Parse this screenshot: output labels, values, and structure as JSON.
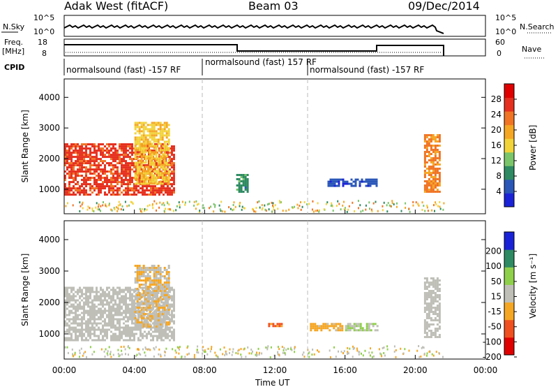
{
  "header": {
    "station": "Adak West (fitACF)",
    "beam": "Beam 03",
    "date": "09/Dec/2014"
  },
  "strips": {
    "nsky_label": "N.Sky",
    "nsky_ticks": [
      "10^5",
      "10^0"
    ],
    "nsearch_label": "N.Search",
    "freq_label": "Freq.",
    "freq_unit": "[MHz]",
    "freq_ticks": [
      "18",
      "8"
    ],
    "nave_label": "Nave",
    "nave_ticks": [
      "60",
      "0"
    ],
    "cpid_label": "CPID",
    "cpid_segments": [
      "normalsound (fast) -157 RF",
      "normalsound (fast) 157 RF",
      "normalsound (fast) -157 RF"
    ]
  },
  "xaxis": {
    "label": "Time UT",
    "ticks": [
      "00:00",
      "04:00",
      "08:00",
      "12:00",
      "16:00",
      "20:00",
      "00:00"
    ]
  },
  "colors": {
    "power": [
      "#1a22d8",
      "#2a56b8",
      "#2e8a62",
      "#7ac46a",
      "#f2d33a",
      "#f5a623",
      "#f07424",
      "#e62f1e",
      "#e00000"
    ],
    "velocity": [
      "#e00000",
      "#f05020",
      "#f5a623",
      "#bfbfb8",
      "#8fd04a",
      "#2e8a62",
      "#1a22d8"
    ]
  },
  "chart_data": [
    {
      "type": "heatmap",
      "panel": "power",
      "ylabel": "Slant Range [km]",
      "xlabel": "",
      "xlim": [
        0,
        24
      ],
      "ylim": [
        200,
        4600
      ],
      "yticks": [
        "1000",
        "2000",
        "3000",
        "4000"
      ],
      "colorbar": {
        "label": "Power [dB]",
        "ticks": [
          "4",
          "8",
          "12",
          "16",
          "20",
          "24",
          "28"
        ],
        "range": [
          0,
          32
        ]
      },
      "regions": [
        {
          "t0": 0.0,
          "t1": 6.2,
          "r0": 800,
          "r1": 2500,
          "value": 26
        },
        {
          "t0": 4.0,
          "t1": 6.0,
          "r0": 1200,
          "r1": 3200,
          "value": 17
        },
        {
          "t0": 9.8,
          "t1": 10.4,
          "r0": 900,
          "r1": 1500,
          "value": 9
        },
        {
          "t0": 15.0,
          "t1": 17.8,
          "r0": 1100,
          "r1": 1350,
          "value": 5
        },
        {
          "t0": 20.5,
          "t1": 21.4,
          "r0": 900,
          "r1": 2800,
          "value": 22
        }
      ]
    },
    {
      "type": "heatmap",
      "panel": "velocity",
      "ylabel": "Slant Range [km]",
      "xlabel": "Time UT",
      "xlim": [
        0,
        24
      ],
      "ylim": [
        200,
        4600
      ],
      "yticks": [
        "1000",
        "2000",
        "3000",
        "4000"
      ],
      "colorbar": {
        "label": "Velocity [m s⁻¹]",
        "ticks": [
          "200",
          "100",
          "50",
          "15",
          "-15",
          "-50",
          "-100",
          "-200"
        ],
        "range": [
          -250,
          250
        ]
      },
      "regions": [
        {
          "t0": 0.0,
          "t1": 6.2,
          "r0": 800,
          "r1": 2500,
          "value": 0
        },
        {
          "t0": 4.0,
          "t1": 6.0,
          "r0": 1200,
          "r1": 3200,
          "value": -30
        },
        {
          "t0": 11.5,
          "t1": 12.5,
          "r0": 1250,
          "r1": 1350,
          "value": -120
        },
        {
          "t0": 14.0,
          "t1": 15.8,
          "r0": 1100,
          "r1": 1350,
          "value": -60
        },
        {
          "t0": 16.0,
          "t1": 17.8,
          "r0": 1100,
          "r1": 1350,
          "value": 30
        },
        {
          "t0": 20.5,
          "t1": 21.4,
          "r0": 900,
          "r1": 2800,
          "value": 0
        }
      ]
    }
  ]
}
